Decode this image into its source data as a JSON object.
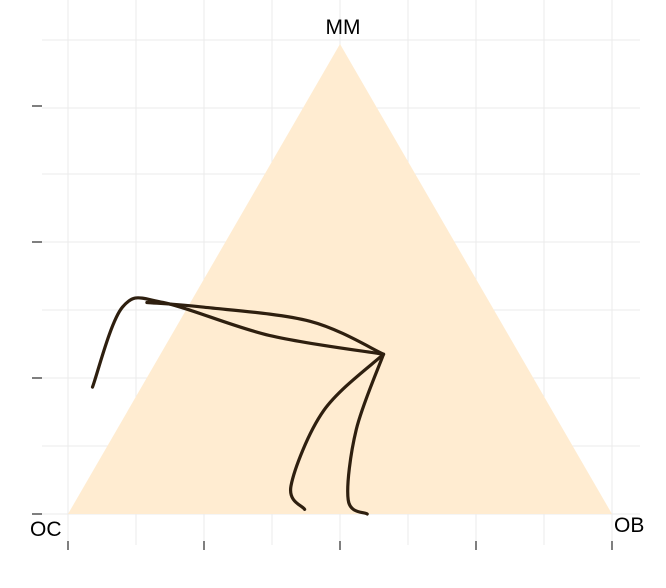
{
  "chart_data": {
    "type": "ternary",
    "title": "",
    "vertices": {
      "top": "MM",
      "left": "OC",
      "right": "OB"
    },
    "region_color": "#ffecd1",
    "line_color": "#2e1f0f",
    "grid": true,
    "series": [
      {
        "points": [
          {
            "OC": 0.82,
            "MM": 0.27,
            "OB": -0.09
          },
          {
            "OC": 0.68,
            "MM": 0.44,
            "OB": -0.12
          },
          {
            "OC": 0.6,
            "MM": 0.45,
            "OB": -0.05
          },
          {
            "OC": 0.44,
            "MM": 0.38,
            "OB": 0.18
          },
          {
            "OC": 0.25,
            "MM": 0.34,
            "OB": 0.41
          }
        ]
      },
      {
        "points": [
          {
            "OC": 0.25,
            "MM": 0.34,
            "OB": 0.41
          },
          {
            "OC": 0.35,
            "MM": 0.41,
            "OB": 0.24
          },
          {
            "OC": 0.53,
            "MM": 0.44,
            "OB": 0.03
          },
          {
            "OC": 0.63,
            "MM": 0.45,
            "OB": -0.08
          }
        ]
      },
      {
        "points": [
          {
            "OC": 0.25,
            "MM": 0.34,
            "OB": 0.41
          },
          {
            "OC": 0.42,
            "MM": 0.22,
            "OB": 0.36
          },
          {
            "OC": 0.56,
            "MM": 0.06,
            "OB": 0.38
          },
          {
            "OC": 0.56,
            "MM": 0.01,
            "OB": 0.43
          }
        ]
      },
      {
        "points": [
          {
            "OC": 0.25,
            "MM": 0.34,
            "OB": 0.41
          },
          {
            "OC": 0.38,
            "MM": 0.18,
            "OB": 0.44
          },
          {
            "OC": 0.47,
            "MM": 0.03,
            "OB": 0.5
          },
          {
            "OC": 0.45,
            "MM": 0.0,
            "OB": 0.55
          }
        ]
      }
    ]
  }
}
